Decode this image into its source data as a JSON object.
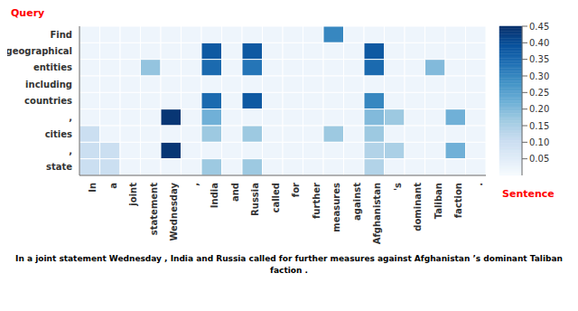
{
  "chart_data": {
    "type": "heatmap",
    "x_label": "Sentence",
    "y_label": "Query",
    "annotations": [
      "In a joint statement Wednesday , India and Russia called for further measures against Afghanistan ’s dominant Taliban faction ."
    ],
    "x": [
      "In",
      "a",
      "joint",
      "statement",
      "Wednesday",
      ",",
      "India",
      "and",
      "Russia",
      "called",
      "for",
      "further",
      "measures",
      "against",
      "Afghanistan",
      "'s",
      "dominant",
      "Taliban",
      "faction",
      "."
    ],
    "y": [
      "Find",
      "geographical",
      "entities",
      "including",
      "countries",
      ",",
      "cities",
      ",",
      "state"
    ],
    "values": [
      [
        0.02,
        0.02,
        0.02,
        0.02,
        0.02,
        0.02,
        0.02,
        0.02,
        0.02,
        0.02,
        0.02,
        0.02,
        0.3,
        0.02,
        0.02,
        0.02,
        0.02,
        0.02,
        0.02,
        0.02
      ],
      [
        0.02,
        0.02,
        0.02,
        0.02,
        0.02,
        0.02,
        0.38,
        0.02,
        0.38,
        0.02,
        0.02,
        0.02,
        0.02,
        0.02,
        0.38,
        0.02,
        0.02,
        0.02,
        0.02,
        0.02
      ],
      [
        0.02,
        0.02,
        0.02,
        0.18,
        0.02,
        0.02,
        0.35,
        0.02,
        0.33,
        0.02,
        0.02,
        0.02,
        0.02,
        0.02,
        0.35,
        0.02,
        0.02,
        0.2,
        0.02,
        0.02
      ],
      [
        0.02,
        0.02,
        0.02,
        0.02,
        0.02,
        0.02,
        0.02,
        0.02,
        0.02,
        0.02,
        0.02,
        0.02,
        0.02,
        0.02,
        0.02,
        0.02,
        0.02,
        0.02,
        0.02,
        0.02
      ],
      [
        0.02,
        0.02,
        0.02,
        0.02,
        0.02,
        0.02,
        0.35,
        0.02,
        0.38,
        0.02,
        0.02,
        0.02,
        0.02,
        0.02,
        0.3,
        0.02,
        0.02,
        0.02,
        0.02,
        0.02
      ],
      [
        0.02,
        0.02,
        0.02,
        0.02,
        0.44,
        0.02,
        0.22,
        0.02,
        0.02,
        0.02,
        0.02,
        0.02,
        0.02,
        0.02,
        0.2,
        0.17,
        0.02,
        0.02,
        0.22,
        0.02
      ],
      [
        0.1,
        0.02,
        0.02,
        0.02,
        0.02,
        0.02,
        0.17,
        0.02,
        0.17,
        0.02,
        0.02,
        0.02,
        0.17,
        0.02,
        0.17,
        0.02,
        0.02,
        0.02,
        0.02,
        0.02
      ],
      [
        0.1,
        0.1,
        0.02,
        0.02,
        0.44,
        0.02,
        0.02,
        0.02,
        0.02,
        0.02,
        0.02,
        0.02,
        0.02,
        0.02,
        0.14,
        0.15,
        0.02,
        0.02,
        0.22,
        0.02
      ],
      [
        0.1,
        0.1,
        0.02,
        0.02,
        0.02,
        0.02,
        0.17,
        0.02,
        0.17,
        0.02,
        0.02,
        0.02,
        0.02,
        0.02,
        0.14,
        0.02,
        0.02,
        0.02,
        0.02,
        0.02
      ]
    ],
    "colorbar_range": [
      0.0,
      0.45
    ],
    "colorbar_ticks": [
      0.05,
      {
        "value": 0.1,
        "label": "0.10"
      },
      0.15,
      {
        "value": 0.2,
        "label": "0.20"
      },
      0.25,
      {
        "value": 0.3,
        "label": "0.30"
      },
      0.35,
      {
        "value": 0.4,
        "label": "0.40"
      },
      0.45
    ]
  }
}
